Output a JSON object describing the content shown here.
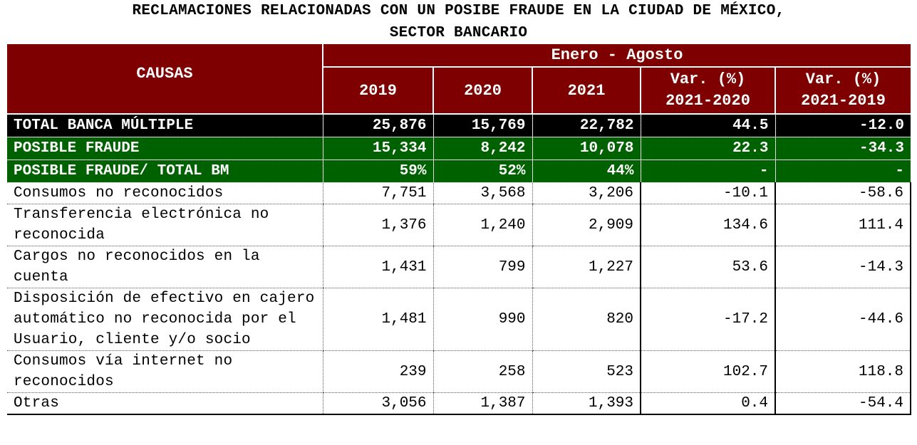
{
  "title": {
    "line1": "RECLAMACIONES RELACIONADAS CON UN POSIBE FRAUDE EN LA CIUDAD DE MÉXICO,",
    "line2": "SECTOR BANCARIO"
  },
  "header": {
    "causas": "CAUSAS",
    "period": "Enero - Agosto",
    "col_2019": "2019",
    "col_2020": "2020",
    "col_2021": "2021",
    "var1_line1": "Var. (%)",
    "var1_line2": "2021-2020",
    "var2_line1": "Var. (%)",
    "var2_line2": "2021-2019"
  },
  "summary_rows": [
    {
      "label": "TOTAL BANCA MÚLTIPLE",
      "v2019": "25,876",
      "v2020": "15,769",
      "v2021": "22,782",
      "var1": "44.5",
      "var2": "-12.0"
    },
    {
      "label": "POSIBLE FRAUDE",
      "v2019": "15,334",
      "v2020": "8,242",
      "v2021": "10,078",
      "var1": "22.3",
      "var2": "-34.3"
    },
    {
      "label": "POSIBLE FRAUDE/ TOTAL BM",
      "v2019": "59%",
      "v2020": "52%",
      "v2021": "44%",
      "var1": "-",
      "var2": "-"
    }
  ],
  "rows": [
    {
      "label": "Consumos no reconocidos",
      "v2019": "7,751",
      "v2020": "3,568",
      "v2021": "3,206",
      "var1": "-10.1",
      "var2": "-58.6"
    },
    {
      "label": "Transferencia electrónica no reconocida",
      "v2019": "1,376",
      "v2020": "1,240",
      "v2021": "2,909",
      "var1": "134.6",
      "var2": "111.4"
    },
    {
      "label": "Cargos no reconocidos en la cuenta",
      "v2019": "1,431",
      "v2020": "799",
      "v2021": "1,227",
      "var1": "53.6",
      "var2": "-14.3"
    },
    {
      "label": "Disposición de efectivo en cajero automático no reconocida por el Usuario, cliente y/o socio",
      "v2019": "1,481",
      "v2020": "990",
      "v2021": "820",
      "var1": "-17.2",
      "var2": "-44.6"
    },
    {
      "label": "Consumos vía internet no reconocidos",
      "v2019": "239",
      "v2020": "258",
      "v2021": "523",
      "var1": "102.7",
      "var2": "118.8"
    },
    {
      "label": "Otras",
      "v2019": "3,056",
      "v2020": "1,387",
      "v2021": "1,393",
      "var1": "0.4",
      "var2": "-54.4"
    }
  ]
}
